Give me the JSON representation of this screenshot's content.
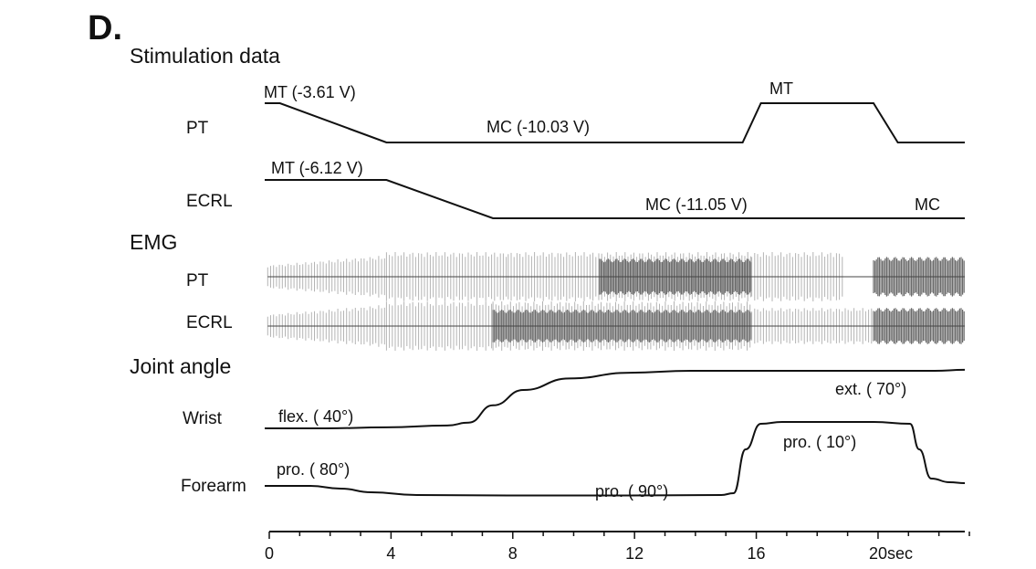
{
  "panel_label": "D.",
  "sections": {
    "stimulation": "Stimulation data",
    "emg": "EMG",
    "joint": "Joint angle"
  },
  "rows": {
    "stim_pt": "PT",
    "stim_ecrl": "ECRL",
    "emg_pt": "PT",
    "emg_ecrl": "ECRL",
    "wrist": "Wrist",
    "forearm": "Forearm"
  },
  "annotations": {
    "pt_mt": "MT (-3.61 V)",
    "pt_mc": "MC (-10.03 V)",
    "pt_mt2": "MT",
    "ecrl_mt": "MT (-6.12 V)",
    "ecrl_mc": "MC (-11.05 V)",
    "ecrl_mc2": "MC",
    "wrist_flex": "flex. ( 40°)",
    "wrist_ext": "ext. ( 70°)",
    "forearm_pro80": "pro. ( 80°)",
    "forearm_pro90": "pro. ( 90°)",
    "forearm_pro10": "pro. ( 10°)"
  },
  "chart_data": {
    "type": "line",
    "title": "",
    "xlabel": "",
    "x_unit": "sec",
    "xlim": [
      0,
      23
    ],
    "x_ticks": [
      0,
      4,
      8,
      12,
      16,
      20
    ],
    "x_tick_labels": [
      "0",
      "4",
      "8",
      "12",
      "16",
      "20sec"
    ],
    "grid": false,
    "line_color": "#111111",
    "emg_light_color": "#b4b4b4",
    "emg_dark_color": "#6a6a6a",
    "stimulation": [
      {
        "name": "PT",
        "unit": "V",
        "points": [
          [
            0,
            -3.61
          ],
          [
            0.5,
            -3.61
          ],
          [
            4,
            -10.03
          ],
          [
            15.7,
            -10.03
          ],
          [
            16.3,
            -3.61
          ],
          [
            20,
            -3.61
          ],
          [
            20.8,
            -10.03
          ],
          [
            23,
            -10.03
          ]
        ]
      },
      {
        "name": "ECRL",
        "unit": "V",
        "points": [
          [
            0,
            -6.12
          ],
          [
            4,
            -6.12
          ],
          [
            7.5,
            -11.05
          ],
          [
            23,
            -11.05
          ]
        ]
      }
    ],
    "emg": [
      {
        "name": "PT",
        "segments": [
          {
            "start": 0.1,
            "end": 4,
            "level": "ramp",
            "from": 0.35,
            "to": 0.65
          },
          {
            "start": 4,
            "end": 8,
            "level": "high",
            "amp": 0.75
          },
          {
            "start": 8,
            "end": 16,
            "level": "high",
            "amp": 0.75
          },
          {
            "start": 11,
            "end": 16,
            "level": "dense",
            "amp": 0.55
          },
          {
            "start": 16,
            "end": 19,
            "level": "high",
            "amp": 0.75
          },
          {
            "start": 20,
            "end": 23,
            "level": "dense",
            "amp": 0.6
          }
        ]
      },
      {
        "name": "ECRL",
        "segments": [
          {
            "start": 0.1,
            "end": 4,
            "level": "ramp",
            "from": 0.35,
            "to": 0.65
          },
          {
            "start": 4,
            "end": 7.5,
            "level": "high",
            "amp": 0.75
          },
          {
            "start": 7.5,
            "end": 16,
            "level": "high",
            "amp": 0.75
          },
          {
            "start": 7.5,
            "end": 16,
            "level": "dense",
            "amp": 0.5
          },
          {
            "start": 16,
            "end": 20,
            "level": "high",
            "amp": 0.55
          },
          {
            "start": 20,
            "end": 23,
            "level": "dense",
            "amp": 0.55
          }
        ]
      }
    ],
    "joint_angle": [
      {
        "name": "Wrist",
        "unit": "deg",
        "points": [
          [
            0,
            40
          ],
          [
            2,
            40
          ],
          [
            4,
            40.5
          ],
          [
            6,
            41.5
          ],
          [
            6.7,
            43
          ],
          [
            7.5,
            52
          ],
          [
            8.5,
            60
          ],
          [
            10,
            66
          ],
          [
            12,
            69
          ],
          [
            14,
            70
          ],
          [
            16,
            70
          ],
          [
            18,
            70
          ],
          [
            20,
            70
          ],
          [
            22,
            70
          ],
          [
            23,
            70.5
          ]
        ]
      },
      {
        "name": "Forearm",
        "unit": "deg",
        "points": [
          [
            0,
            80
          ],
          [
            1.5,
            80
          ],
          [
            2.5,
            83
          ],
          [
            3.5,
            87
          ],
          [
            5,
            90
          ],
          [
            8,
            90.5
          ],
          [
            12,
            90.5
          ],
          [
            15,
            90
          ],
          [
            15.4,
            88
          ],
          [
            15.8,
            40
          ],
          [
            16.3,
            12
          ],
          [
            17,
            10
          ],
          [
            20,
            10
          ],
          [
            21.2,
            12
          ],
          [
            21.5,
            40
          ],
          [
            21.9,
            72
          ],
          [
            22.5,
            76
          ],
          [
            23,
            77
          ]
        ]
      }
    ]
  }
}
